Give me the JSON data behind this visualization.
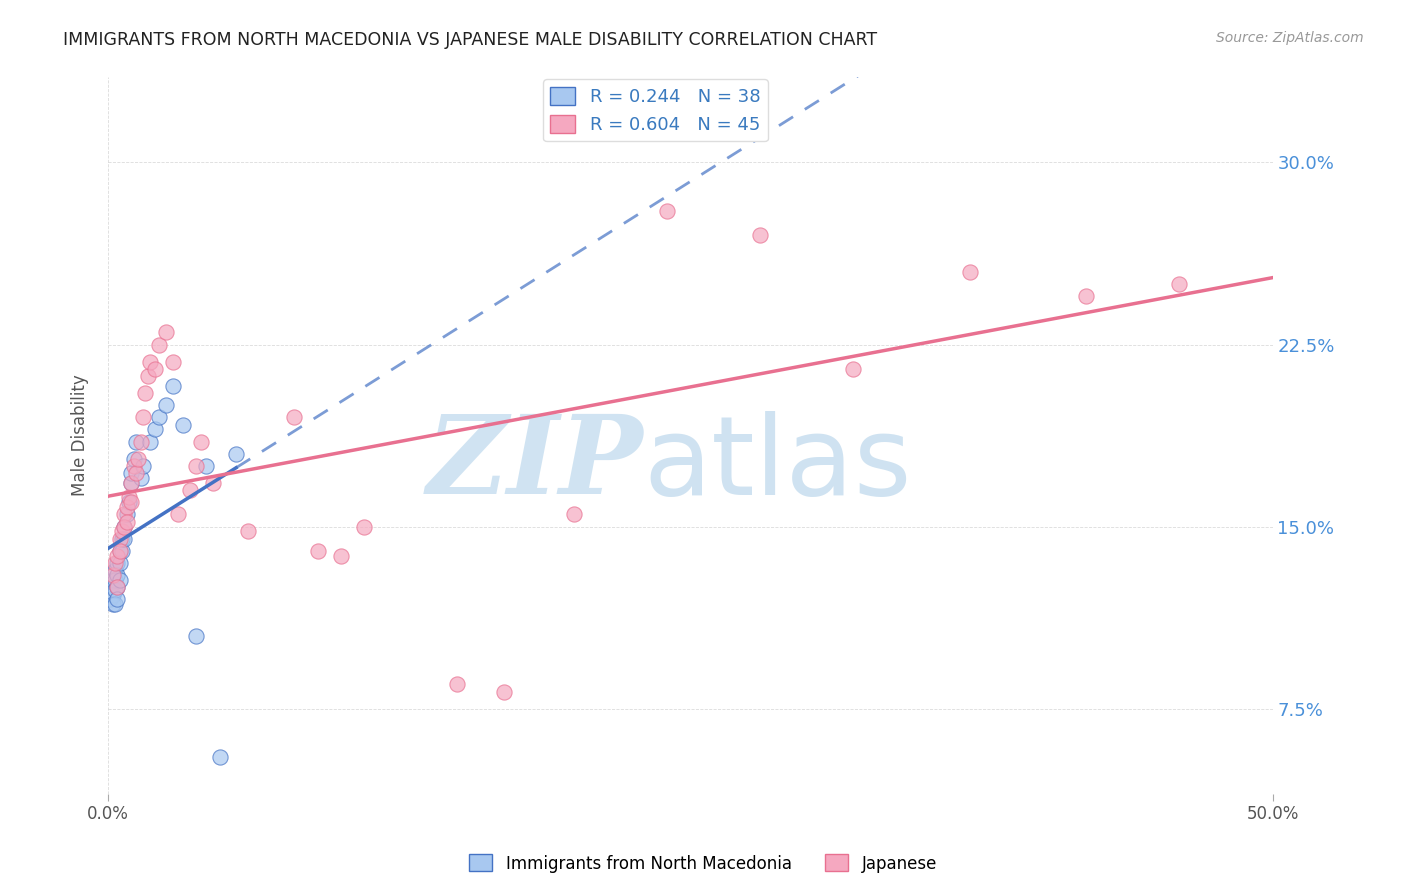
{
  "title": "IMMIGRANTS FROM NORTH MACEDONIA VS JAPANESE MALE DISABILITY CORRELATION CHART",
  "source": "Source: ZipAtlas.com",
  "ylabel": "Male Disability",
  "ytick_labels": [
    "7.5%",
    "15.0%",
    "22.5%",
    "30.0%"
  ],
  "ytick_values": [
    0.075,
    0.15,
    0.225,
    0.3
  ],
  "xlim": [
    0.0,
    0.5
  ],
  "ylim": [
    0.04,
    0.335
  ],
  "blue_R": 0.244,
  "blue_N": 38,
  "pink_R": 0.604,
  "pink_N": 45,
  "blue_color": "#a8c8f0",
  "pink_color": "#f5a8c0",
  "blue_line_color": "#4472c4",
  "pink_line_color": "#e87090",
  "legend_label_blue": "Immigrants from North Macedonia",
  "legend_label_pink": "Japanese",
  "blue_scatter_x": [
    0.001,
    0.001,
    0.002,
    0.002,
    0.002,
    0.003,
    0.003,
    0.003,
    0.003,
    0.004,
    0.004,
    0.004,
    0.004,
    0.005,
    0.005,
    0.005,
    0.006,
    0.006,
    0.007,
    0.007,
    0.008,
    0.009,
    0.01,
    0.01,
    0.011,
    0.012,
    0.014,
    0.015,
    0.018,
    0.02,
    0.022,
    0.025,
    0.028,
    0.032,
    0.038,
    0.042,
    0.048,
    0.055
  ],
  "blue_scatter_y": [
    0.125,
    0.12,
    0.128,
    0.122,
    0.118,
    0.132,
    0.128,
    0.124,
    0.118,
    0.135,
    0.13,
    0.125,
    0.12,
    0.14,
    0.135,
    0.128,
    0.145,
    0.14,
    0.15,
    0.145,
    0.155,
    0.16,
    0.168,
    0.172,
    0.178,
    0.185,
    0.17,
    0.175,
    0.185,
    0.19,
    0.195,
    0.2,
    0.208,
    0.192,
    0.105,
    0.175,
    0.055,
    0.18
  ],
  "pink_scatter_x": [
    0.002,
    0.003,
    0.004,
    0.004,
    0.005,
    0.005,
    0.006,
    0.007,
    0.007,
    0.008,
    0.008,
    0.009,
    0.01,
    0.01,
    0.011,
    0.012,
    0.013,
    0.014,
    0.015,
    0.016,
    0.017,
    0.018,
    0.02,
    0.022,
    0.025,
    0.028,
    0.03,
    0.035,
    0.038,
    0.04,
    0.045,
    0.06,
    0.08,
    0.09,
    0.1,
    0.11,
    0.15,
    0.17,
    0.2,
    0.24,
    0.28,
    0.32,
    0.37,
    0.42,
    0.46
  ],
  "pink_scatter_y": [
    0.13,
    0.135,
    0.138,
    0.125,
    0.145,
    0.14,
    0.148,
    0.155,
    0.15,
    0.158,
    0.152,
    0.162,
    0.168,
    0.16,
    0.175,
    0.172,
    0.178,
    0.185,
    0.195,
    0.205,
    0.212,
    0.218,
    0.215,
    0.225,
    0.23,
    0.218,
    0.155,
    0.165,
    0.175,
    0.185,
    0.168,
    0.148,
    0.195,
    0.14,
    0.138,
    0.15,
    0.085,
    0.082,
    0.155,
    0.28,
    0.27,
    0.215,
    0.255,
    0.245,
    0.25
  ]
}
